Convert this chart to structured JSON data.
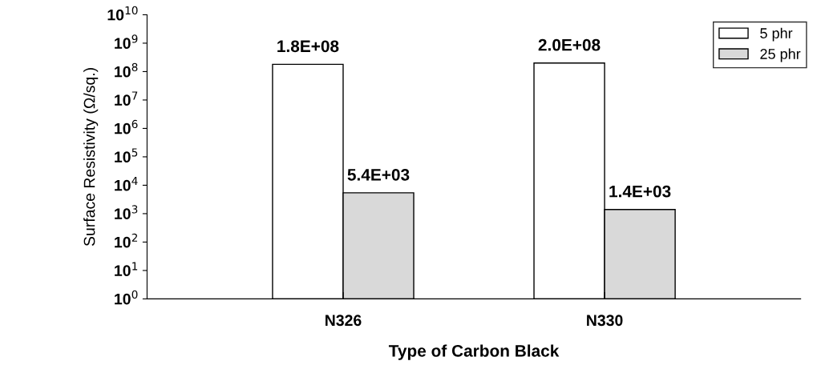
{
  "chart_data": {
    "type": "bar",
    "xlabel": "Type of Carbon Black",
    "ylabel": "Surface Resistivity (Ω/sq.)",
    "categories": [
      "N326",
      "N330"
    ],
    "series": [
      {
        "name": "5 phr",
        "color": "#ffffff",
        "values": [
          180000000,
          200000000
        ],
        "value_labels": [
          "1.8E+08",
          "2.0E+08"
        ]
      },
      {
        "name": "25 phr",
        "color": "#d9d9d9",
        "values": [
          5400,
          1400
        ],
        "value_labels": [
          "5.4E+03",
          "1.4E+03"
        ]
      }
    ],
    "log": "y",
    "ylim": [
      1,
      10000000000
    ],
    "yticks": [
      {
        "value": 1,
        "label": "10$^{0}$"
      },
      {
        "value": 10,
        "label": "10$^{1}$"
      },
      {
        "value": 100,
        "label": "10$^{2}$"
      },
      {
        "value": 1000,
        "label": "10$^{3}$"
      },
      {
        "value": 10000,
        "label": "10$^{4}$"
      },
      {
        "value": 100000,
        "label": "10$^{5}$"
      },
      {
        "value": 1000000,
        "label": "10$^{6}$"
      },
      {
        "value": 10000000,
        "label": "10$^{7}$"
      },
      {
        "value": 100000000,
        "label": "10$^{8}$"
      },
      {
        "value": 1000000000,
        "label": "10$^{9}$"
      },
      {
        "value": 10000000000,
        "label": "10$^{10}$"
      }
    ],
    "grid": false,
    "legend": "top right"
  }
}
